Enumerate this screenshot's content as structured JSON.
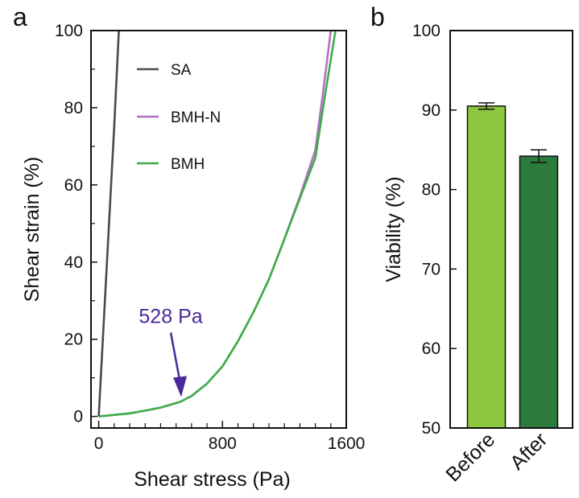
{
  "chart_data": [
    {
      "type": "line",
      "panel_label": "a",
      "xlabel": "Shear stress (Pa)",
      "ylabel": "Shear strain (%)",
      "xlim": [
        -50,
        1600
      ],
      "ylim": [
        -3,
        100
      ],
      "x_ticks": [
        0,
        800,
        1600
      ],
      "y_ticks": [
        0,
        20,
        40,
        60,
        80,
        100
      ],
      "legend_position": "top-left inside",
      "series": [
        {
          "name": "SA",
          "color": "#4a4a4a",
          "points": [
            [
              0,
              0
            ],
            [
              60,
              45
            ],
            [
              100,
              75
            ],
            [
              130,
              100
            ]
          ]
        },
        {
          "name": "BMH-N",
          "color": "#b36fc4",
          "points": [
            [
              0,
              0
            ],
            [
              100,
              0.4
            ],
            [
              200,
              0.8
            ],
            [
              300,
              1.5
            ],
            [
              400,
              2.3
            ],
            [
              528,
              3.8
            ],
            [
              600,
              5.3
            ],
            [
              700,
              8.5
            ],
            [
              800,
              13
            ],
            [
              900,
              19.5
            ],
            [
              1000,
              27
            ],
            [
              1100,
              35.5
            ],
            [
              1200,
              46
            ],
            [
              1300,
              57
            ],
            [
              1400,
              69
            ],
            [
              1450,
              84
            ],
            [
              1500,
              100
            ]
          ]
        },
        {
          "name": "BMH",
          "color": "#3fae49",
          "points": [
            [
              0,
              0
            ],
            [
              100,
              0.4
            ],
            [
              200,
              0.8
            ],
            [
              300,
              1.5
            ],
            [
              400,
              2.3
            ],
            [
              528,
              3.8
            ],
            [
              600,
              5.3
            ],
            [
              700,
              8.5
            ],
            [
              800,
              13
            ],
            [
              900,
              19.5
            ],
            [
              1000,
              27
            ],
            [
              1100,
              35.5
            ],
            [
              1200,
              46
            ],
            [
              1300,
              56.5
            ],
            [
              1400,
              67
            ],
            [
              1470,
              85
            ],
            [
              1530,
              100
            ]
          ]
        }
      ],
      "annotation": {
        "text": "528 Pa",
        "x": 528,
        "y": 3.8,
        "color": "#4a2a9a"
      }
    },
    {
      "type": "bar",
      "panel_label": "b",
      "categories": [
        "Before",
        "After"
      ],
      "values": [
        90.5,
        84.2
      ],
      "errors": [
        0.4,
        0.8
      ],
      "colors": [
        "#8dc63f",
        "#2a7b3c"
      ],
      "ylabel": "Viability (%)",
      "ylim": [
        50,
        100
      ],
      "y_ticks": [
        50,
        60,
        70,
        80,
        90,
        100
      ]
    }
  ]
}
